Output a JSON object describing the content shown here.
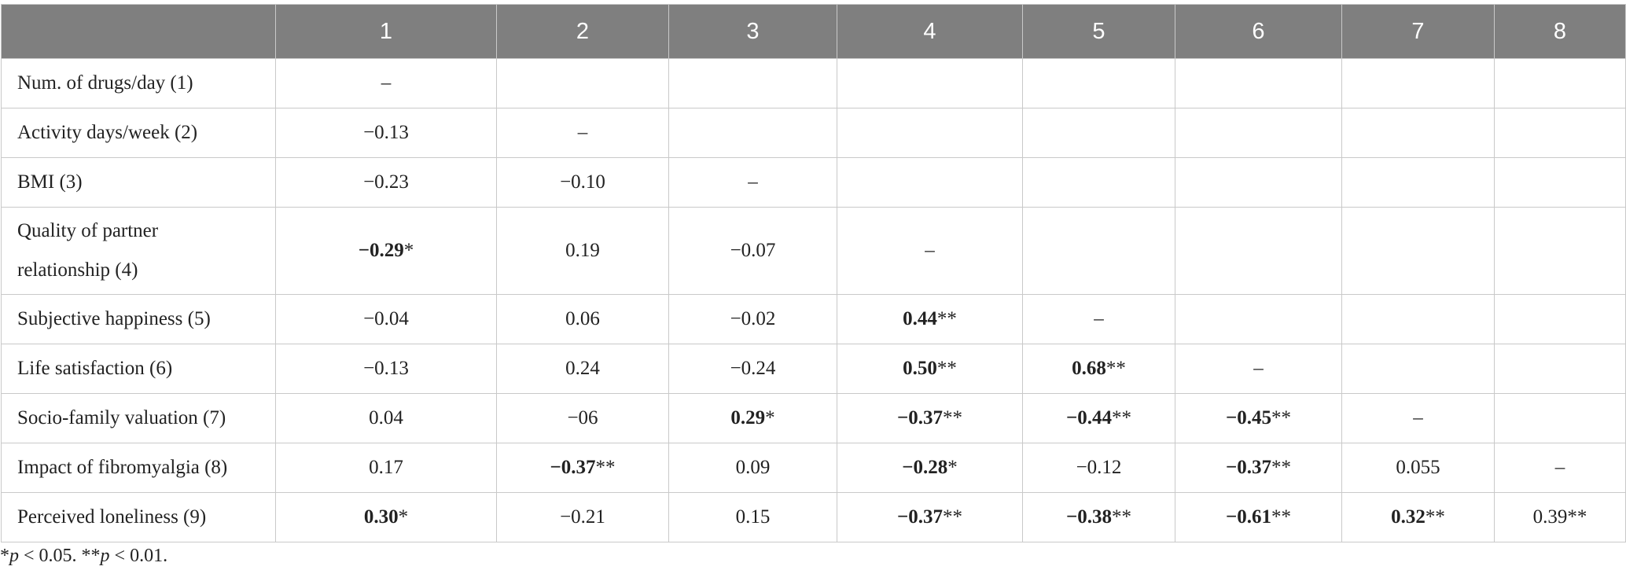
{
  "table": {
    "columns": [
      "1",
      "2",
      "3",
      "4",
      "5",
      "6",
      "7",
      "8"
    ],
    "rows": [
      {
        "label": "Num. of drugs/day (1)",
        "cells": [
          {
            "value": "–"
          },
          null,
          null,
          null,
          null,
          null,
          null,
          null
        ]
      },
      {
        "label": "Activity days/week (2)",
        "cells": [
          {
            "value": "−0.13"
          },
          {
            "value": "–"
          },
          null,
          null,
          null,
          null,
          null,
          null
        ]
      },
      {
        "label": "BMI (3)",
        "cells": [
          {
            "value": "−0.23"
          },
          {
            "value": "−0.10"
          },
          {
            "value": "–"
          },
          null,
          null,
          null,
          null,
          null
        ]
      },
      {
        "label": "Quality of partner relationship (4)",
        "cells": [
          {
            "value": "−0.29",
            "sig": "*",
            "bold": true
          },
          {
            "value": "0.19"
          },
          {
            "value": "−0.07"
          },
          {
            "value": "–"
          },
          null,
          null,
          null,
          null
        ]
      },
      {
        "label": "Subjective happiness (5)",
        "cells": [
          {
            "value": "−0.04"
          },
          {
            "value": "0.06"
          },
          {
            "value": "−0.02"
          },
          {
            "value": "0.44",
            "sig": "**",
            "bold": true
          },
          {
            "value": "–"
          },
          null,
          null,
          null
        ]
      },
      {
        "label": "Life satisfaction (6)",
        "cells": [
          {
            "value": "−0.13"
          },
          {
            "value": "0.24"
          },
          {
            "value": "−0.24"
          },
          {
            "value": "0.50",
            "sig": "**",
            "bold": true
          },
          {
            "value": "0.68",
            "sig": "**",
            "bold": true
          },
          {
            "value": "–"
          },
          null,
          null
        ]
      },
      {
        "label": "Socio-family valuation (7)",
        "cells": [
          {
            "value": "0.04"
          },
          {
            "value": "−06"
          },
          {
            "value": "0.29",
            "sig": "*",
            "bold": true
          },
          {
            "value": "−0.37",
            "sig": "**",
            "bold": true
          },
          {
            "value": "−0.44",
            "sig": "**",
            "bold": true
          },
          {
            "value": "−0.45",
            "sig": "**",
            "bold": true
          },
          {
            "value": "–"
          },
          null
        ]
      },
      {
        "label": "Impact of fibromyalgia (8)",
        "cells": [
          {
            "value": "0.17"
          },
          {
            "value": "−0.37",
            "sig": "**",
            "bold": true
          },
          {
            "value": "0.09"
          },
          {
            "value": "−0.28",
            "sig": "*",
            "bold": true
          },
          {
            "value": "−0.12"
          },
          {
            "value": "−0.37",
            "sig": "**",
            "bold": true
          },
          {
            "value": "0.055"
          },
          {
            "value": "–"
          }
        ]
      },
      {
        "label": "Perceived loneliness (9)",
        "cells": [
          {
            "value": "0.30",
            "sig": "*",
            "bold": true
          },
          {
            "value": "−0.21"
          },
          {
            "value": "0.15"
          },
          {
            "value": "−0.37",
            "sig": "**",
            "bold": true
          },
          {
            "value": "−0.38",
            "sig": "**",
            "bold": true
          },
          {
            "value": "−0.61",
            "sig": "**",
            "bold": true
          },
          {
            "value": "0.32",
            "sig": "**",
            "bold": true
          },
          {
            "value": "0.39",
            "sig": "**"
          }
        ]
      }
    ],
    "footnote": [
      {
        "text": "*"
      },
      {
        "text": "p",
        "italic": true
      },
      {
        "text": " < 0.05. **"
      },
      {
        "text": "p",
        "italic": true
      },
      {
        "text": " < 0.01."
      }
    ]
  }
}
